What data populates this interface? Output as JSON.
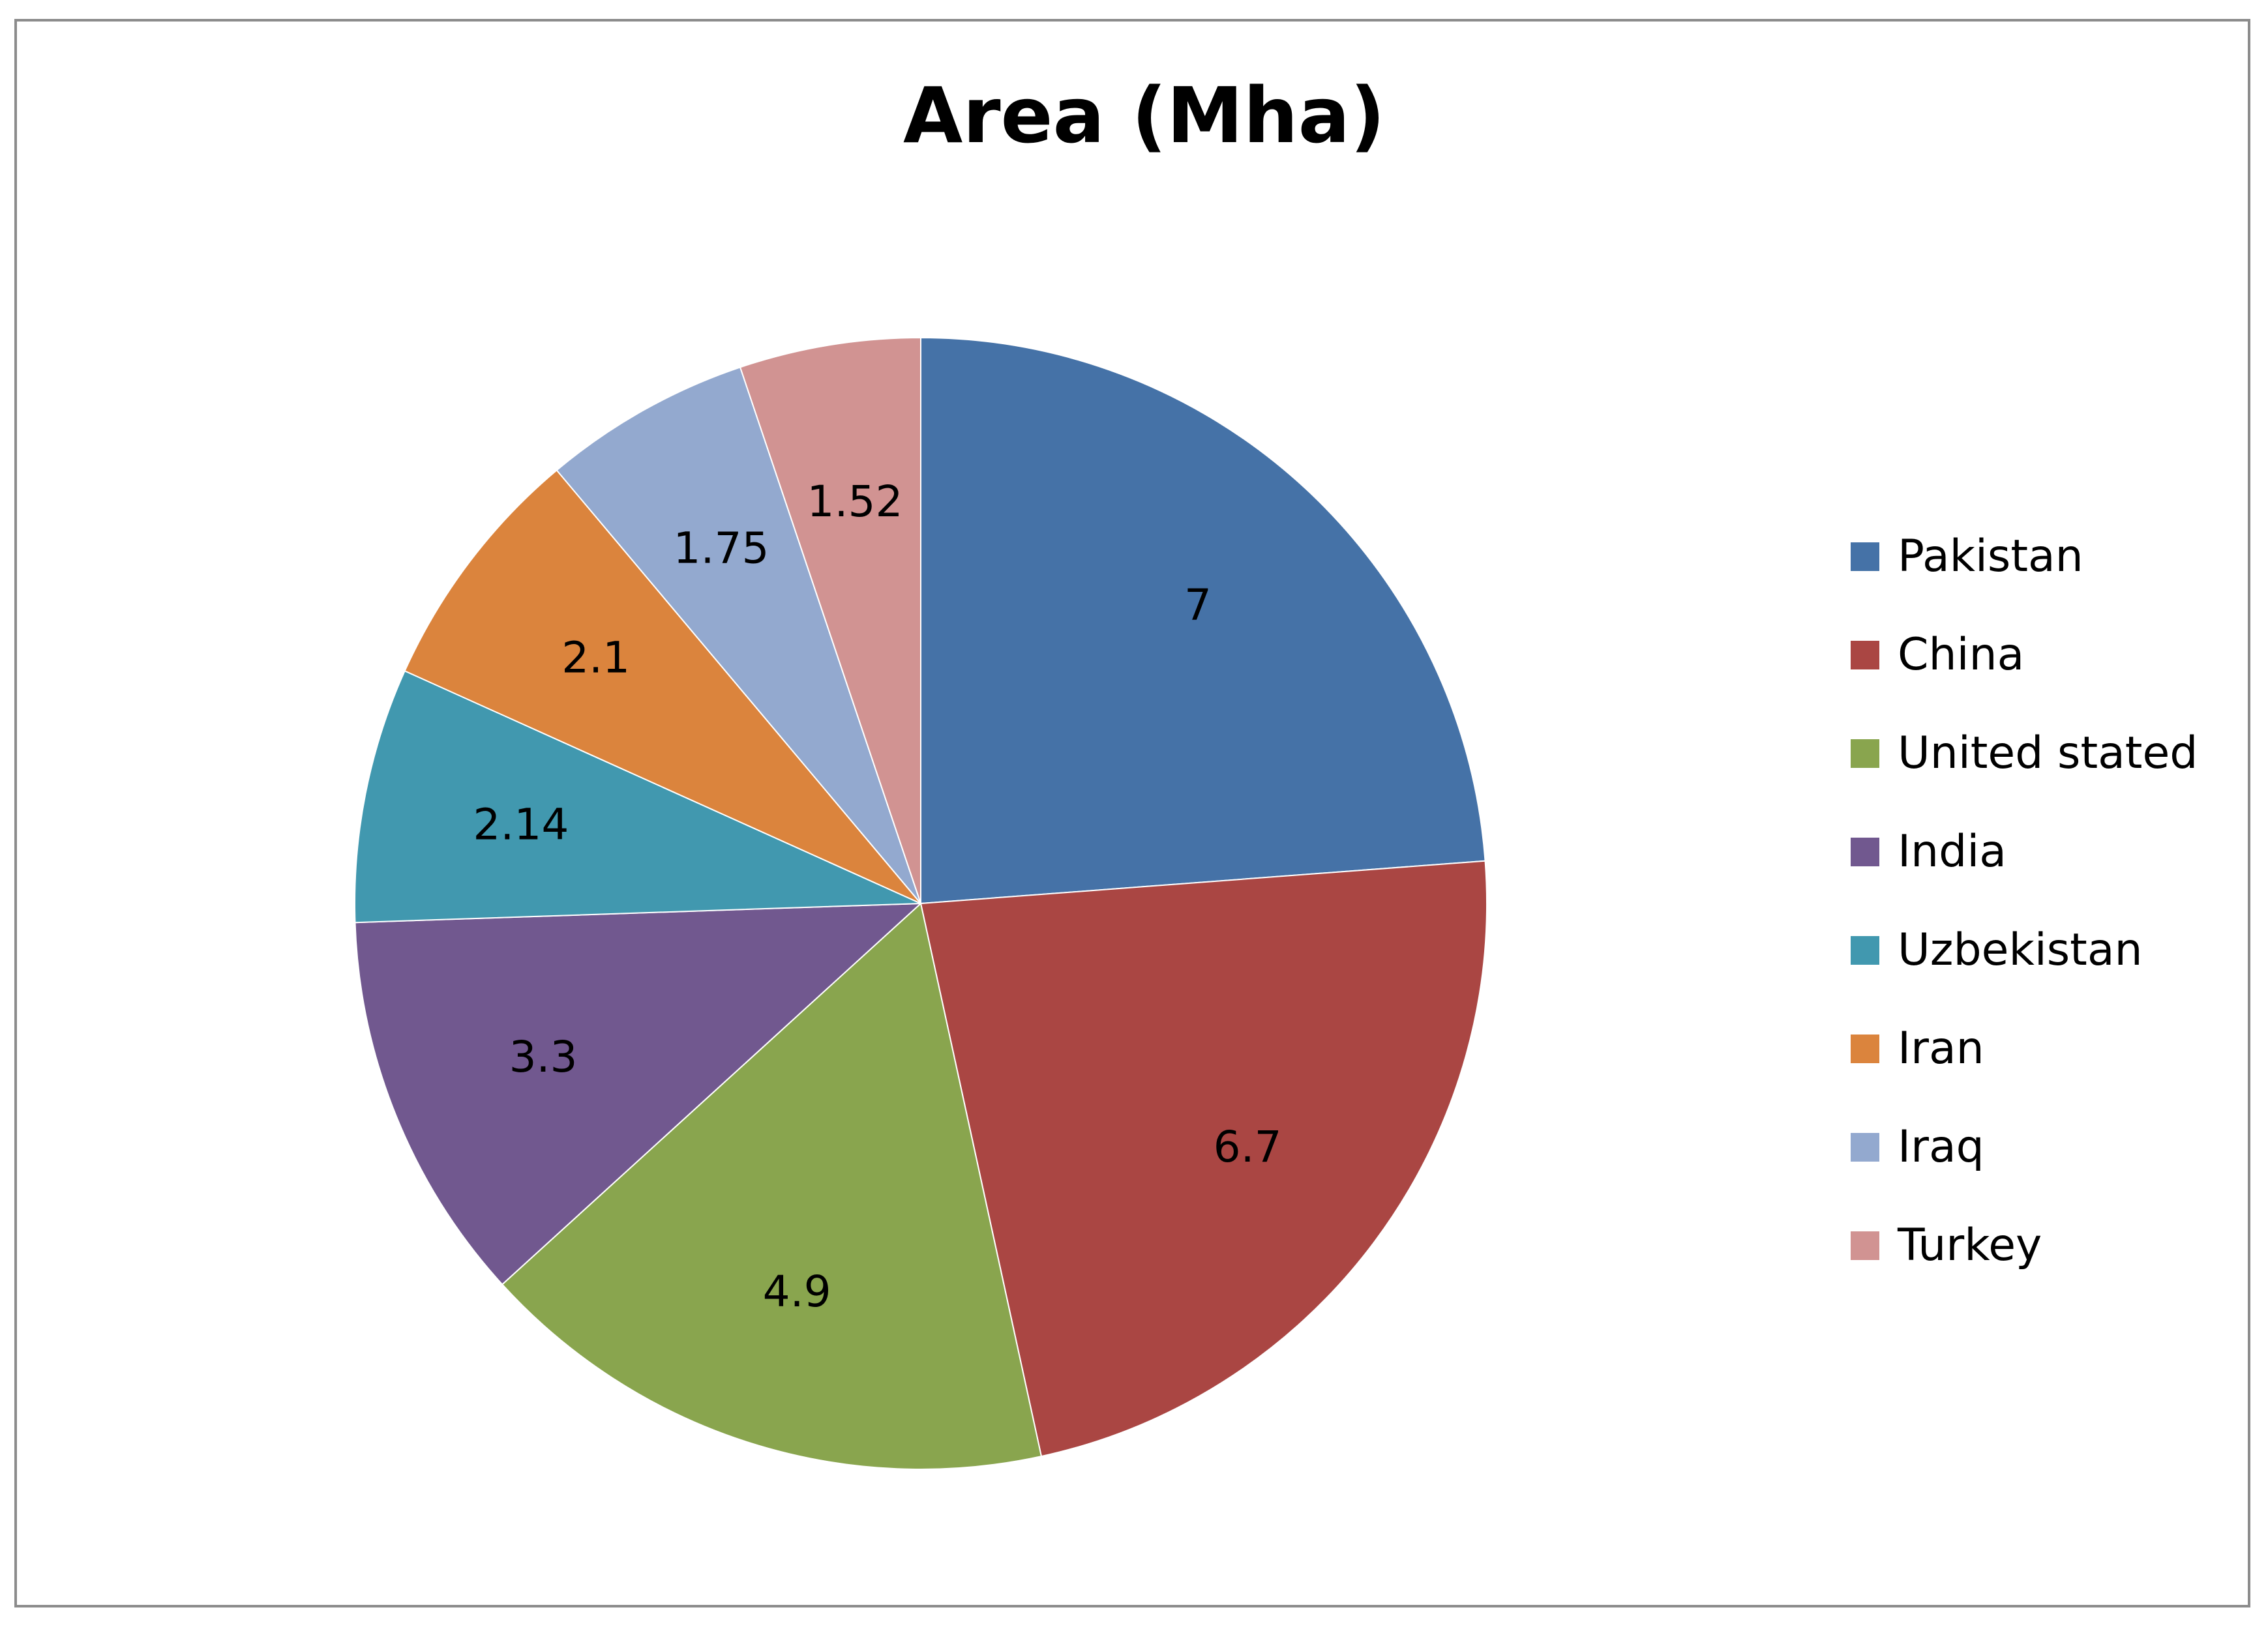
{
  "chart_data": {
    "type": "pie",
    "title": "Area (Mha)",
    "categories": [
      "Pakistan",
      "China",
      "United stated",
      "India",
      "Uzbekistan",
      "Iran",
      "Iraq",
      "Turkey"
    ],
    "values": [
      7,
      6.7,
      4.9,
      3.3,
      2.14,
      2.1,
      1.75,
      1.52
    ],
    "data_labels": [
      "7",
      "6.7",
      "4.9",
      "3.3",
      "2.14",
      "2.1",
      "1.75",
      "1.52"
    ],
    "colors": [
      "#4572A7",
      "#AA4643",
      "#89A54E",
      "#71588F",
      "#4198AF",
      "#DB843D",
      "#93A9CF",
      "#D19392"
    ],
    "legend_position": "right"
  }
}
